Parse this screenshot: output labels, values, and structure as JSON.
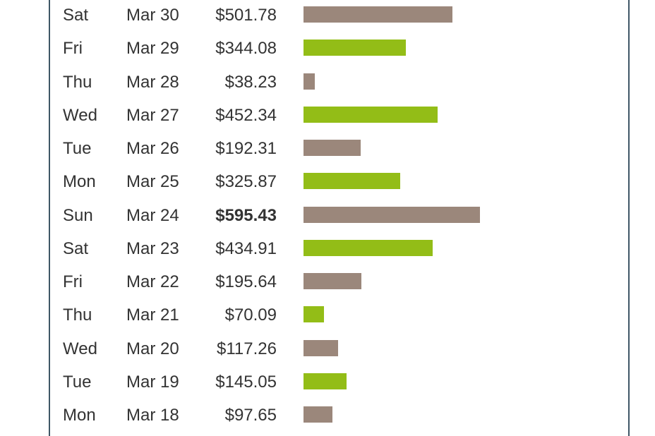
{
  "colors": {
    "bar_alt_green": "#93bd17",
    "bar_alt_brown": "#9b877b",
    "border": "#3f5766",
    "text": "#333333"
  },
  "sales_rows": [
    {
      "day": "Sat",
      "date": "Mar 30",
      "amount": "$501.78",
      "value": 501.78,
      "color": "#9b877b",
      "highlight": false
    },
    {
      "day": "Fri",
      "date": "Mar 29",
      "amount": "$344.08",
      "value": 344.08,
      "color": "#93bd17",
      "highlight": false
    },
    {
      "day": "Thu",
      "date": "Mar 28",
      "amount": "$38.23",
      "value": 38.23,
      "color": "#9b877b",
      "highlight": false
    },
    {
      "day": "Wed",
      "date": "Mar 27",
      "amount": "$452.34",
      "value": 452.34,
      "color": "#93bd17",
      "highlight": false
    },
    {
      "day": "Tue",
      "date": "Mar 26",
      "amount": "$192.31",
      "value": 192.31,
      "color": "#9b877b",
      "highlight": false
    },
    {
      "day": "Mon",
      "date": "Mar 25",
      "amount": "$325.87",
      "value": 325.87,
      "color": "#93bd17",
      "highlight": false
    },
    {
      "day": "Sun",
      "date": "Mar 24",
      "amount": "$595.43",
      "value": 595.43,
      "color": "#9b877b",
      "highlight": true
    },
    {
      "day": "Sat",
      "date": "Mar 23",
      "amount": "$434.91",
      "value": 434.91,
      "color": "#93bd17",
      "highlight": false
    },
    {
      "day": "Fri",
      "date": "Mar 22",
      "amount": "$195.64",
      "value": 195.64,
      "color": "#9b877b",
      "highlight": false
    },
    {
      "day": "Thu",
      "date": "Mar 21",
      "amount": "$70.09",
      "value": 70.09,
      "color": "#93bd17",
      "highlight": false
    },
    {
      "day": "Wed",
      "date": "Mar 20",
      "amount": "$117.26",
      "value": 117.26,
      "color": "#9b877b",
      "highlight": false
    },
    {
      "day": "Tue",
      "date": "Mar 19",
      "amount": "$145.05",
      "value": 145.05,
      "color": "#93bd17",
      "highlight": false
    },
    {
      "day": "Mon",
      "date": "Mar 18",
      "amount": "$97.65",
      "value": 97.65,
      "color": "#9b877b",
      "highlight": false
    }
  ]
}
